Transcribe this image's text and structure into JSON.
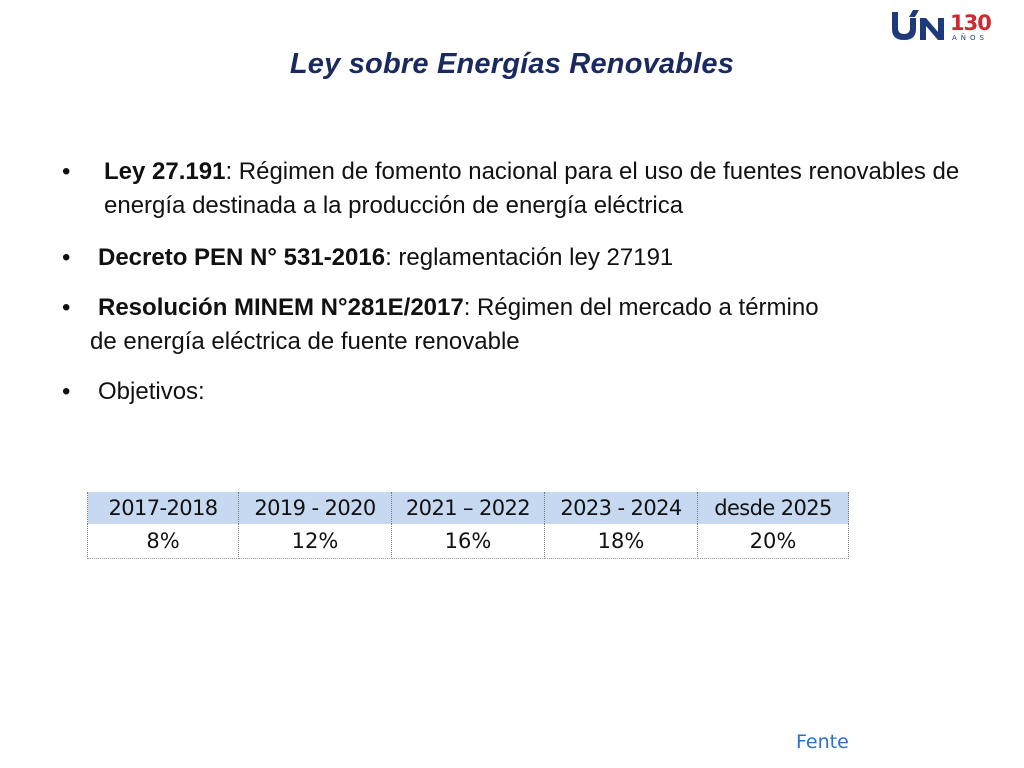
{
  "logo": {
    "mark": "UN",
    "number": "130",
    "sub": "AÑOS",
    "colors": {
      "navy": "#1f3a7a",
      "red": "#d0282e"
    }
  },
  "title": "Ley sobre Energías Renovables",
  "bullets": [
    {
      "bold": "Ley 27.191",
      "text": ": Régimen de fomento nacional para el uso de fuentes renovables de energía destinada a la producción de energía eléctrica"
    },
    {
      "bold": "Decreto PEN N° 531-2016",
      "text": ": reglamentación ley 27191"
    },
    {
      "bold": "Resolución MINEM N°281E/2017",
      "text": ": Régimen del mercado a término",
      "text2": "de energía eléctrica de fuente renovable"
    },
    {
      "text": "Objetivos:"
    }
  ],
  "bullet_symbol": "•",
  "table": {
    "headers": [
      "2017-2018",
      "2019 - 2020",
      "2021 – 2022",
      "2023 - 2024",
      "desde 2025"
    ],
    "values": [
      "8%",
      "12%",
      "16%",
      "18%",
      "20%"
    ],
    "header_color": "#c6d9f1"
  },
  "footer": {
    "link": "Fente",
    "color": "#2f6fc4"
  }
}
